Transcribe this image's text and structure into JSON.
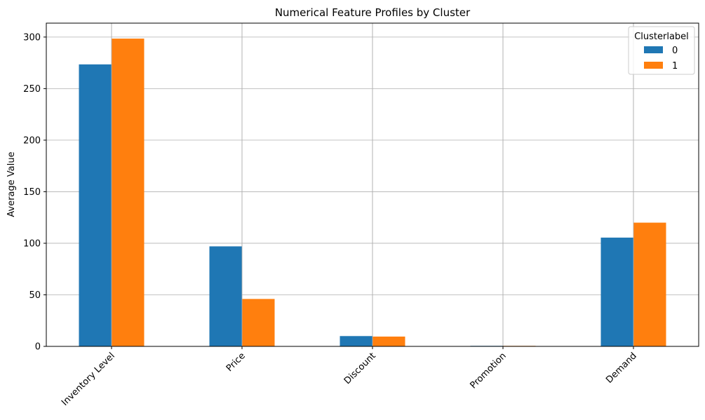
{
  "chart_data": {
    "type": "bar",
    "title": "Numerical Feature Profiles by Cluster",
    "xlabel": "",
    "ylabel": "Average Value",
    "categories": [
      "Inventory Level",
      "Price",
      "Discount",
      "Promotion",
      "Demand"
    ],
    "series": [
      {
        "name": "0",
        "color": "#1f77b4",
        "values": [
          273.5,
          97.0,
          10.0,
          0.5,
          105.5
        ]
      },
      {
        "name": "1",
        "color": "#ff7f0e",
        "values": [
          298.5,
          46.0,
          9.5,
          0.5,
          120.0
        ]
      }
    ],
    "ylim": [
      0,
      313.5
    ],
    "yticks": [
      0,
      50,
      100,
      150,
      200,
      250,
      300
    ],
    "grid": true,
    "legend": {
      "title": "Clusterlabel",
      "placement": "top-right"
    }
  }
}
